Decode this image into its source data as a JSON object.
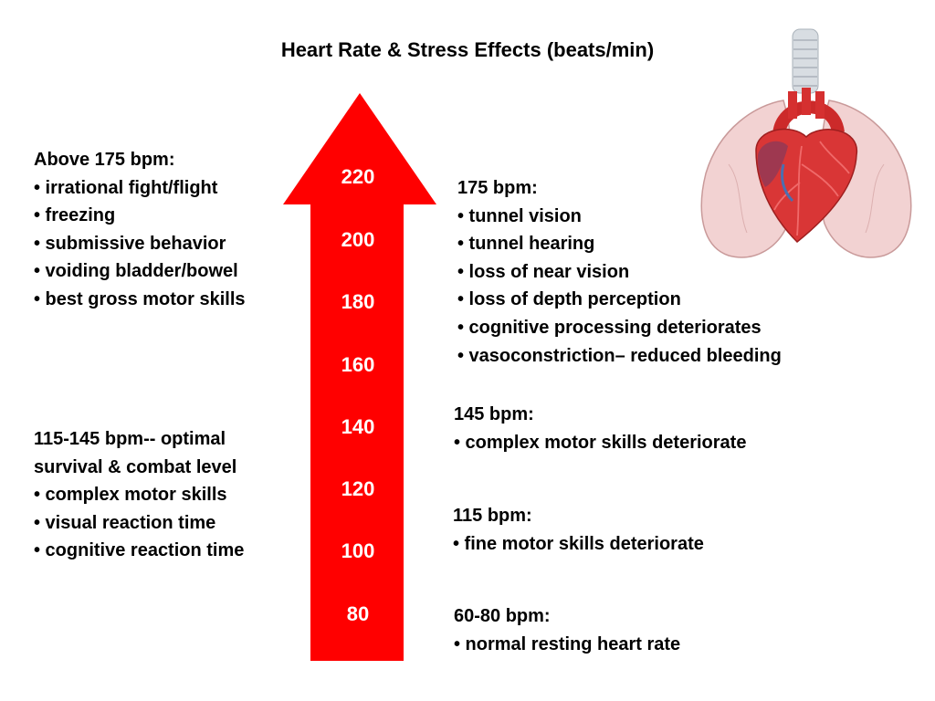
{
  "title": "Heart Rate & Stress Effects (beats/min)",
  "arrow": {
    "color": "#ff0000",
    "scale_labels": [
      "220",
      "200",
      "180",
      "160",
      "140",
      "120",
      "100",
      "80"
    ]
  },
  "left_blocks": [
    {
      "heading": "Above 175 bpm:",
      "lines": [
        "• irrational fight/flight",
        "• freezing",
        "• submissive behavior",
        "• voiding bladder/bowel",
        "• best gross motor skills"
      ]
    },
    {
      "heading": "115-145 bpm--  optimal",
      "lines": [
        "survival & combat level",
        "• complex motor skills",
        "• visual reaction time",
        "• cognitive reaction time"
      ]
    }
  ],
  "right_blocks": [
    {
      "heading": "175 bpm:",
      "lines": [
        "• tunnel vision",
        "• tunnel hearing",
        "• loss of near vision",
        "• loss of depth perception",
        "• cognitive processing deteriorates",
        "• vasoconstriction– reduced bleeding"
      ]
    },
    {
      "heading": "145 bpm:",
      "lines": [
        "• complex motor skills deteriorate"
      ]
    },
    {
      "heading": "115 bpm:",
      "lines": [
        "• fine motor skills deteriorate"
      ]
    },
    {
      "heading": "60-80 bpm:",
      "lines": [
        "• normal resting heart rate"
      ]
    }
  ],
  "illustration": {
    "icon": "heart-lungs-icon"
  }
}
